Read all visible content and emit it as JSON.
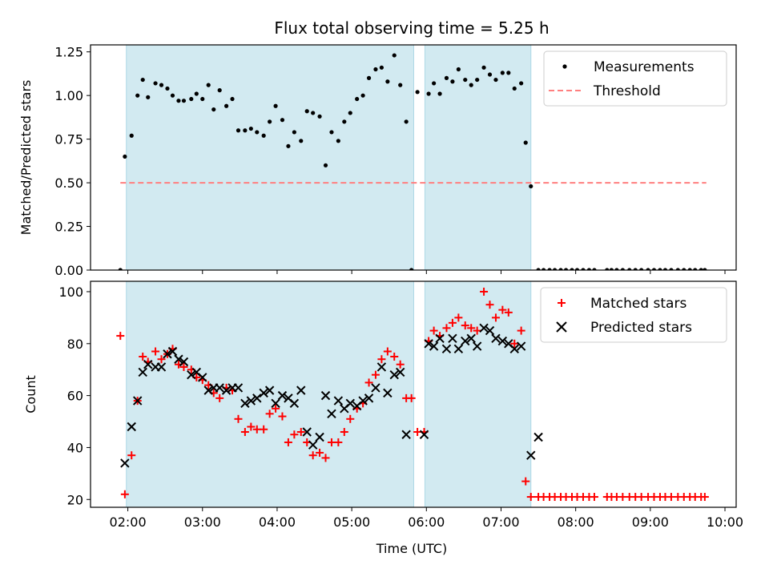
{
  "figure": {
    "title": "Flux total observing time = 5.25 h",
    "xlabel": "Time (UTC)"
  },
  "colors": {
    "band": "#add8e6",
    "measurement": "#000000",
    "threshold": "#ff7f7f",
    "matched": "#ff0000",
    "predicted": "#000000"
  },
  "chart_data": [
    {
      "type": "scatter",
      "ylabel": "Matched/Predicted stars",
      "xlim": [
        1.5,
        10.15
      ],
      "ylim": [
        0,
        1.29
      ],
      "yticks": [
        0,
        0.25,
        0.5,
        0.75,
        1.0,
        1.25
      ],
      "ytick_labels": [
        "0.00",
        "0.25",
        "0.50",
        "0.75",
        "1.00",
        "1.25"
      ],
      "legend": {
        "position": "upper-right",
        "entries": [
          "Measurements",
          "Threshold"
        ]
      },
      "observing_windows": [
        [
          1.98,
          5.83
        ],
        [
          5.98,
          7.4
        ]
      ],
      "threshold": {
        "name": "Threshold",
        "value": 0.5,
        "x_range": [
          1.9,
          9.75
        ]
      },
      "series": [
        {
          "name": "Measurements",
          "x": [
            1.9,
            1.96,
            2.05,
            2.13,
            2.2,
            2.27,
            2.37,
            2.45,
            2.53,
            2.6,
            2.68,
            2.75,
            2.85,
            2.92,
            3.0,
            3.08,
            3.15,
            3.23,
            3.32,
            3.4,
            3.48,
            3.57,
            3.65,
            3.73,
            3.82,
            3.9,
            3.98,
            4.07,
            4.15,
            4.23,
            4.32,
            4.4,
            4.48,
            4.57,
            4.65,
            4.73,
            4.82,
            4.9,
            4.98,
            5.07,
            5.15,
            5.23,
            5.32,
            5.4,
            5.48,
            5.57,
            5.65,
            5.73,
            5.8,
            5.88,
            6.03,
            6.1,
            6.18,
            6.27,
            6.35,
            6.43,
            6.52,
            6.6,
            6.68,
            6.77,
            6.85,
            6.93,
            7.02,
            7.1,
            7.18,
            7.27,
            7.33,
            7.4,
            7.5,
            7.57,
            7.65,
            7.72,
            7.8,
            7.87,
            7.95,
            8.02,
            8.1,
            8.18,
            8.25,
            8.42,
            8.48,
            8.55,
            8.63,
            8.72,
            8.8,
            8.88,
            8.97,
            9.05,
            9.13,
            9.2,
            9.28,
            9.37,
            9.45,
            9.53,
            9.6,
            9.68,
            9.73
          ],
          "y": [
            0.0,
            0.65,
            0.77,
            1.0,
            1.09,
            0.99,
            1.07,
            1.06,
            1.04,
            1.0,
            0.97,
            0.97,
            0.98,
            1.01,
            0.98,
            1.06,
            0.92,
            1.03,
            0.94,
            0.98,
            0.8,
            0.8,
            0.81,
            0.79,
            0.77,
            0.85,
            0.94,
            0.86,
            0.71,
            0.79,
            0.74,
            0.91,
            0.9,
            0.88,
            0.6,
            0.79,
            0.74,
            0.85,
            0.9,
            0.98,
            1.0,
            1.1,
            1.15,
            1.16,
            1.08,
            1.23,
            1.06,
            0.85,
            0.0,
            1.02,
            1.01,
            1.07,
            1.01,
            1.1,
            1.08,
            1.15,
            1.09,
            1.06,
            1.09,
            1.16,
            1.12,
            1.09,
            1.13,
            1.13,
            1.04,
            1.07,
            0.73,
            0.48,
            0.0,
            0.0,
            0.0,
            0.0,
            0.0,
            0.0,
            0.0,
            0.0,
            0.0,
            0.0,
            0.0,
            0.0,
            0.0,
            0.0,
            0.0,
            0.0,
            0.0,
            0.0,
            0.0,
            0.0,
            0.0,
            0.0,
            0.0,
            0.0,
            0.0,
            0.0,
            0.0,
            0.0,
            0.0
          ]
        }
      ]
    },
    {
      "type": "scatter",
      "ylabel": "Count",
      "xlim": [
        1.5,
        10.15
      ],
      "ylim": [
        17,
        104
      ],
      "yticks": [
        20,
        40,
        60,
        80,
        100
      ],
      "ytick_labels": [
        "20",
        "40",
        "60",
        "80",
        "100"
      ],
      "xticks": [
        2,
        3,
        4,
        5,
        6,
        7,
        8,
        9,
        10
      ],
      "xtick_labels": [
        "02:00",
        "03:00",
        "04:00",
        "05:00",
        "06:00",
        "07:00",
        "08:00",
        "09:00",
        "10:00"
      ],
      "legend": {
        "position": "upper-right",
        "entries": [
          "Matched stars",
          "Predicted stars"
        ]
      },
      "observing_windows": [
        [
          1.98,
          5.83
        ],
        [
          5.98,
          7.4
        ]
      ],
      "series": [
        {
          "name": "Matched stars",
          "marker": "+",
          "x": [
            1.9,
            1.96,
            2.05,
            2.13,
            2.2,
            2.27,
            2.37,
            2.45,
            2.53,
            2.6,
            2.68,
            2.75,
            2.85,
            2.92,
            3.0,
            3.08,
            3.15,
            3.23,
            3.32,
            3.4,
            3.48,
            3.57,
            3.65,
            3.73,
            3.82,
            3.9,
            3.98,
            4.07,
            4.15,
            4.23,
            4.32,
            4.4,
            4.48,
            4.57,
            4.65,
            4.73,
            4.82,
            4.9,
            4.98,
            5.07,
            5.15,
            5.23,
            5.32,
            5.4,
            5.48,
            5.57,
            5.65,
            5.73,
            5.8,
            5.88,
            5.97,
            6.03,
            6.1,
            6.18,
            6.27,
            6.35,
            6.43,
            6.52,
            6.6,
            6.68,
            6.77,
            6.85,
            6.93,
            7.02,
            7.1,
            7.18,
            7.27,
            7.33,
            7.4,
            7.5,
            7.57,
            7.65,
            7.72,
            7.8,
            7.87,
            7.95,
            8.02,
            8.1,
            8.18,
            8.25,
            8.42,
            8.48,
            8.55,
            8.63,
            8.72,
            8.8,
            8.88,
            8.97,
            9.05,
            9.13,
            9.2,
            9.28,
            9.37,
            9.45,
            9.53,
            9.6,
            9.68,
            9.73
          ],
          "y": [
            83,
            22,
            37,
            58,
            75,
            73,
            77,
            74,
            76,
            78,
            72,
            71,
            70,
            67,
            66,
            64,
            61,
            59,
            63,
            62,
            51,
            46,
            48,
            47,
            47,
            53,
            55,
            52,
            42,
            45,
            46,
            42,
            37,
            38,
            36,
            42,
            42,
            46,
            51,
            55,
            57,
            65,
            68,
            74,
            77,
            75,
            72,
            59,
            59,
            46,
            46,
            81,
            85,
            83,
            86,
            88,
            90,
            87,
            86,
            85,
            100,
            95,
            90,
            93,
            92,
            80,
            85,
            27,
            21,
            21,
            21,
            21,
            21,
            21,
            21,
            21,
            21,
            21,
            21,
            21,
            21,
            21,
            21,
            21,
            21,
            21,
            21,
            21,
            21,
            21,
            21,
            21,
            21,
            21,
            21,
            21,
            21,
            21
          ]
        },
        {
          "name": "Predicted stars",
          "marker": "x",
          "x": [
            1.96,
            2.05,
            2.13,
            2.2,
            2.27,
            2.37,
            2.45,
            2.53,
            2.6,
            2.68,
            2.75,
            2.85,
            2.92,
            3.0,
            3.08,
            3.15,
            3.23,
            3.32,
            3.4,
            3.48,
            3.57,
            3.65,
            3.73,
            3.82,
            3.9,
            3.98,
            4.07,
            4.15,
            4.23,
            4.32,
            4.4,
            4.48,
            4.57,
            4.65,
            4.73,
            4.82,
            4.9,
            4.98,
            5.07,
            5.15,
            5.23,
            5.32,
            5.4,
            5.48,
            5.57,
            5.65,
            5.73,
            5.97,
            6.03,
            6.1,
            6.18,
            6.27,
            6.35,
            6.43,
            6.52,
            6.6,
            6.68,
            6.77,
            6.85,
            6.93,
            7.02,
            7.1,
            7.18,
            7.27,
            7.4,
            7.5
          ],
          "y": [
            34,
            48,
            58,
            69,
            72,
            71,
            71,
            76,
            77,
            74,
            73,
            68,
            69,
            67,
            62,
            63,
            63,
            62,
            63,
            63,
            57,
            58,
            59,
            61,
            62,
            57,
            60,
            59,
            57,
            62,
            46,
            41,
            44,
            60,
            53,
            58,
            55,
            57,
            56,
            58,
            59,
            63,
            71,
            61,
            68,
            69,
            45,
            45,
            80,
            79,
            82,
            78,
            82,
            78,
            81,
            82,
            79,
            86,
            85,
            82,
            81,
            80,
            78,
            79,
            37,
            44
          ]
        }
      ]
    }
  ]
}
